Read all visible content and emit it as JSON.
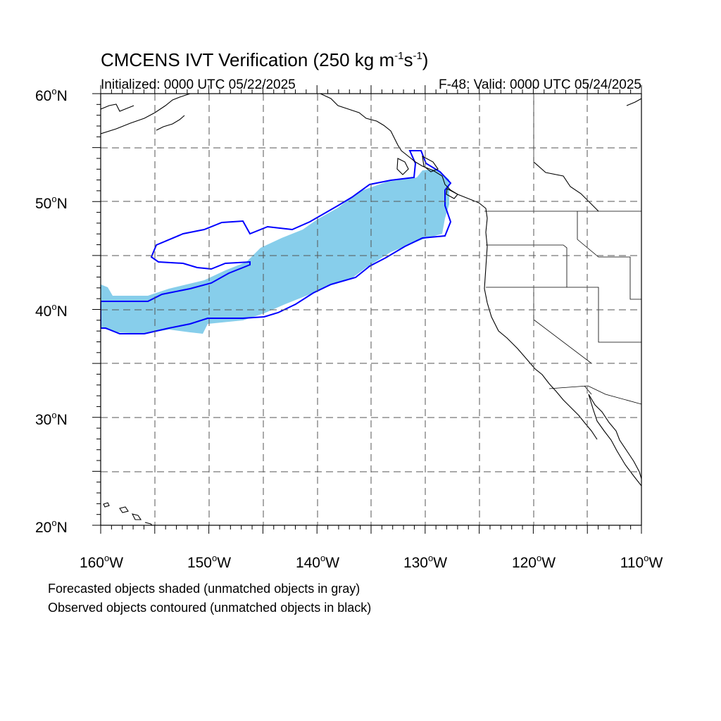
{
  "title": {
    "prefix": "CMCENS IVT Verification (250 kg m",
    "exp1": "-1",
    "middle": "s",
    "exp2": "-1",
    "suffix": ")"
  },
  "initialized": "Initialized: 0000 UTC 05/22/2025",
  "valid": "F-48: Valid: 0000 UTC 05/24/2025",
  "lat_labels": [
    {
      "num": "60",
      "hemi": "N"
    },
    {
      "num": "50",
      "hemi": "N"
    },
    {
      "num": "40",
      "hemi": "N"
    },
    {
      "num": "30",
      "hemi": "N"
    },
    {
      "num": "20",
      "hemi": "N"
    }
  ],
  "lon_labels": [
    {
      "num": "160",
      "hemi": "W"
    },
    {
      "num": "150",
      "hemi": "W"
    },
    {
      "num": "140",
      "hemi": "W"
    },
    {
      "num": "130",
      "hemi": "W"
    },
    {
      "num": "120",
      "hemi": "W"
    },
    {
      "num": "110",
      "hemi": "W"
    }
  ],
  "degree_symbol": "o",
  "notes": {
    "line1": "Forecasted objects shaded (unmatched objects in gray)",
    "line2": "Observed objects contoured (unmatched objects in black)"
  },
  "map": {
    "projection": "cylindrical equidistant",
    "lat_range": [
      20,
      60
    ],
    "lon_range": [
      -160,
      -110
    ],
    "forecast_fill_color": "#87ceeb",
    "observed_contour_color": "#0000ff",
    "grid_style": "dashed"
  }
}
